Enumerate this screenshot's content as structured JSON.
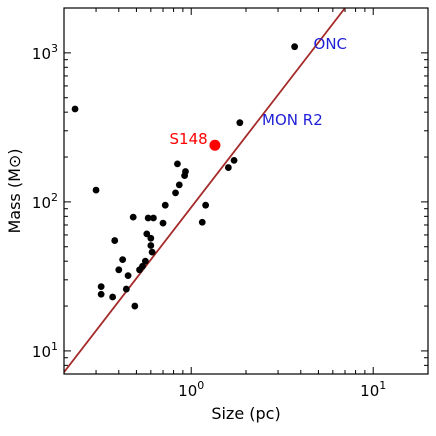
{
  "chart_data": {
    "type": "scatter",
    "xlabel": "Size (pc)",
    "ylabel": "Mass (M⊙)",
    "xscale": "log",
    "yscale": "log",
    "xlim": [
      0.2,
      20
    ],
    "ylim": [
      7,
      2000
    ],
    "x_ticks": [
      {
        "value": 1,
        "base": "10",
        "exp": "0"
      },
      {
        "value": 10,
        "base": "10",
        "exp": "1"
      }
    ],
    "y_ticks": [
      {
        "value": 10,
        "base": "10",
        "exp": "1"
      },
      {
        "value": 100,
        "base": "10",
        "exp": "2"
      },
      {
        "value": 1000,
        "base": "10",
        "exp": "3"
      }
    ],
    "fit_line": {
      "color": "#a52a2a",
      "x": [
        0.2,
        7.0
      ],
      "y": [
        7.2,
        2000
      ]
    },
    "points_color": "#000000",
    "points": [
      {
        "x": 0.23,
        "y": 420
      },
      {
        "x": 0.3,
        "y": 120
      },
      {
        "x": 0.32,
        "y": 27
      },
      {
        "x": 0.32,
        "y": 24
      },
      {
        "x": 0.37,
        "y": 23
      },
      {
        "x": 0.38,
        "y": 55
      },
      {
        "x": 0.4,
        "y": 35
      },
      {
        "x": 0.42,
        "y": 41
      },
      {
        "x": 0.44,
        "y": 26
      },
      {
        "x": 0.45,
        "y": 32
      },
      {
        "x": 0.48,
        "y": 79
      },
      {
        "x": 0.49,
        "y": 20
      },
      {
        "x": 0.52,
        "y": 35
      },
      {
        "x": 0.54,
        "y": 37
      },
      {
        "x": 0.56,
        "y": 40
      },
      {
        "x": 0.57,
        "y": 61
      },
      {
        "x": 0.58,
        "y": 78
      },
      {
        "x": 0.6,
        "y": 51
      },
      {
        "x": 0.6,
        "y": 57
      },
      {
        "x": 0.61,
        "y": 46
      },
      {
        "x": 0.62,
        "y": 78
      },
      {
        "x": 0.7,
        "y": 72
      },
      {
        "x": 0.72,
        "y": 95
      },
      {
        "x": 0.82,
        "y": 115
      },
      {
        "x": 0.84,
        "y": 180
      },
      {
        "x": 0.86,
        "y": 130
      },
      {
        "x": 0.92,
        "y": 150
      },
      {
        "x": 0.93,
        "y": 160
      },
      {
        "x": 1.15,
        "y": 73
      },
      {
        "x": 1.2,
        "y": 95
      },
      {
        "x": 1.6,
        "y": 170
      },
      {
        "x": 1.72,
        "y": 190
      },
      {
        "x": 1.85,
        "y": 340
      },
      {
        "x": 3.7,
        "y": 1100
      }
    ],
    "highlight": {
      "name": "S148",
      "x": 1.35,
      "y": 240,
      "color": "#ff0000"
    },
    "annotations": [
      {
        "text": "ONC",
        "x": 4.7,
        "y": 1150,
        "color": "#1f1fd6"
      },
      {
        "text": "MON R2",
        "x": 2.45,
        "y": 355,
        "color": "#1f1fd6"
      },
      {
        "text": "S148",
        "x": 0.76,
        "y": 265,
        "color": "#ff0000"
      }
    ]
  }
}
